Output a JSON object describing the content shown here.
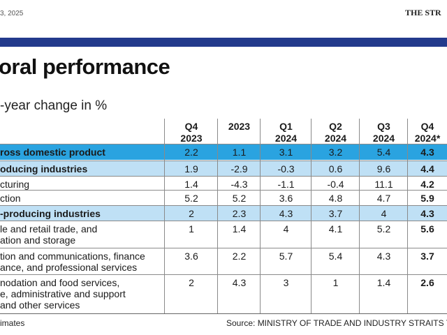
{
  "header": {
    "date": "3, 2025",
    "masthead": "THE STR"
  },
  "accent_bar_color": "#233a8c",
  "row_highlight_colors": {
    "primary": "#2aa3e0",
    "secondary": "#bfe0f5"
  },
  "title": "oral performance",
  "subtitle": "-year change in %",
  "chart_data": {
    "type": "table",
    "columns": [
      {
        "line1": "Q4",
        "line2": "2023"
      },
      {
        "line1": "2023",
        "line2": ""
      },
      {
        "line1": "Q1",
        "line2": "2024"
      },
      {
        "line1": "Q2",
        "line2": "2024"
      },
      {
        "line1": "Q3",
        "line2": "2024"
      },
      {
        "line1": "Q4",
        "line2": "2024*"
      }
    ],
    "rows": [
      {
        "label_lines": [
          "ross domestic product"
        ],
        "values": [
          "2.2",
          "1.1",
          "3.1",
          "3.2",
          "5.4",
          "4.3"
        ],
        "style": "primary",
        "bold_label": true
      },
      {
        "label_lines": [
          "oducing industries"
        ],
        "values": [
          "1.9",
          "-2.9",
          "-0.3",
          "0.6",
          "9.6",
          "4.4"
        ],
        "style": "secondary",
        "bold_label": true
      },
      {
        "label_lines": [
          "cturing"
        ],
        "values": [
          "1.4",
          "-4.3",
          "-1.1",
          "-0.4",
          "11.1",
          "4.2"
        ],
        "style": "none",
        "bold_label": false
      },
      {
        "label_lines": [
          "ction"
        ],
        "values": [
          "5.2",
          "5.2",
          "3.6",
          "4.8",
          "4.7",
          "5.9"
        ],
        "style": "none",
        "bold_label": false
      },
      {
        "label_lines": [
          "-producing industries"
        ],
        "values": [
          "2",
          "2.3",
          "4.3",
          "3.7",
          "4",
          "4.3"
        ],
        "style": "secondary",
        "bold_label": true
      },
      {
        "label_lines": [
          "le and retail trade, and",
          "ation and storage"
        ],
        "values": [
          "1",
          "1.4",
          "4",
          "4.1",
          "5.2",
          "5.6"
        ],
        "style": "none",
        "bold_label": false
      },
      {
        "label_lines": [
          "tion and communications, finance",
          "ance, and professional services"
        ],
        "values": [
          "3.6",
          "2.2",
          "5.7",
          "5.4",
          "4.3",
          "3.7"
        ],
        "style": "none",
        "bold_label": false
      },
      {
        "label_lines": [
          "nodation and food services,",
          "e, administrative and support",
          "and other services"
        ],
        "values": [
          "2",
          "4.3",
          "3",
          "1",
          "1.4",
          "2.6"
        ],
        "style": "none",
        "bold_label": false
      }
    ]
  },
  "footer": {
    "footnote": "imates",
    "source": "Source: MINISTRY OF TRADE AND INDUSTRY   STRAITS TIM"
  }
}
